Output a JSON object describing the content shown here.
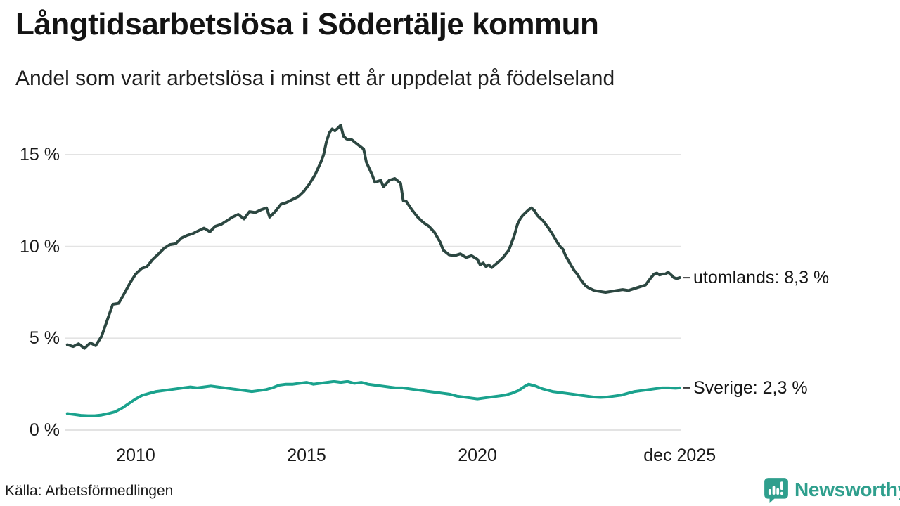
{
  "header": {
    "title": "Långtidsarbetslösa i Södertälje kommun",
    "subtitle": "Andel som varit arbetslösa i minst ett år uppdelat på födelseland"
  },
  "footer": {
    "source": "Källa: Arbetsförmedlingen",
    "logo_text": "Newsworthy"
  },
  "colors": {
    "utomlands_line": "#2c4741",
    "sverige_line": "#1aa28d",
    "grid": "#e3e3e3",
    "label_dash": "#3c3c3c",
    "brand_teal": "#2f9f8d",
    "text": "#1a1a1a"
  },
  "chart_data": {
    "type": "line",
    "title": "Långtidsarbetslösa i Södertälje kommun",
    "subtitle": "Andel som varit arbetslösa i minst ett år uppdelat på födelseland",
    "grid": true,
    "legend_position": "right-end-labels",
    "x_range": [
      2008.0,
      2025.92
    ],
    "y_range": [
      0,
      17.5
    ],
    "y_ticks": [
      {
        "label": "0 %",
        "value": 0
      },
      {
        "label": "5 %",
        "value": 5
      },
      {
        "label": "10 %",
        "value": 10
      },
      {
        "label": "15 %",
        "value": 15
      }
    ],
    "x_ticks": [
      {
        "label": "2010",
        "year": 2010
      },
      {
        "label": "2015",
        "year": 2015
      },
      {
        "label": "2020",
        "year": 2020
      },
      {
        "label": "dec 2025",
        "year": 2025.92
      }
    ],
    "series": [
      {
        "name": "utomlands",
        "end_label": "utomlands: 8,3 %",
        "end_value": 8.3,
        "color": "#2c4741",
        "points": [
          [
            2008.0,
            4.65
          ],
          [
            2008.17,
            4.55
          ],
          [
            2008.33,
            4.7
          ],
          [
            2008.5,
            4.45
          ],
          [
            2008.67,
            4.75
          ],
          [
            2008.83,
            4.6
          ],
          [
            2009.0,
            5.1
          ],
          [
            2009.17,
            6.0
          ],
          [
            2009.33,
            6.85
          ],
          [
            2009.5,
            6.9
          ],
          [
            2009.67,
            7.45
          ],
          [
            2009.83,
            8.0
          ],
          [
            2010.0,
            8.5
          ],
          [
            2010.17,
            8.8
          ],
          [
            2010.33,
            8.9
          ],
          [
            2010.5,
            9.3
          ],
          [
            2010.67,
            9.6
          ],
          [
            2010.83,
            9.9
          ],
          [
            2011.0,
            10.1
          ],
          [
            2011.17,
            10.15
          ],
          [
            2011.33,
            10.45
          ],
          [
            2011.5,
            10.6
          ],
          [
            2011.67,
            10.7
          ],
          [
            2011.83,
            10.85
          ],
          [
            2012.0,
            11.0
          ],
          [
            2012.17,
            10.8
          ],
          [
            2012.33,
            11.1
          ],
          [
            2012.5,
            11.2
          ],
          [
            2012.67,
            11.4
          ],
          [
            2012.83,
            11.6
          ],
          [
            2013.0,
            11.75
          ],
          [
            2013.17,
            11.5
          ],
          [
            2013.33,
            11.9
          ],
          [
            2013.5,
            11.85
          ],
          [
            2013.67,
            12.0
          ],
          [
            2013.83,
            12.1
          ],
          [
            2013.92,
            11.6
          ],
          [
            2014.08,
            11.9
          ],
          [
            2014.25,
            12.3
          ],
          [
            2014.42,
            12.4
          ],
          [
            2014.58,
            12.55
          ],
          [
            2014.75,
            12.7
          ],
          [
            2014.92,
            13.0
          ],
          [
            2015.08,
            13.4
          ],
          [
            2015.25,
            13.9
          ],
          [
            2015.42,
            14.6
          ],
          [
            2015.5,
            15.0
          ],
          [
            2015.58,
            15.7
          ],
          [
            2015.67,
            16.2
          ],
          [
            2015.75,
            16.4
          ],
          [
            2015.83,
            16.3
          ],
          [
            2015.92,
            16.45
          ],
          [
            2016.0,
            16.6
          ],
          [
            2016.08,
            16.0
          ],
          [
            2016.17,
            15.85
          ],
          [
            2016.33,
            15.8
          ],
          [
            2016.5,
            15.55
          ],
          [
            2016.67,
            15.3
          ],
          [
            2016.75,
            14.6
          ],
          [
            2016.92,
            13.9
          ],
          [
            2017.0,
            13.5
          ],
          [
            2017.17,
            13.6
          ],
          [
            2017.25,
            13.25
          ],
          [
            2017.42,
            13.6
          ],
          [
            2017.58,
            13.7
          ],
          [
            2017.75,
            13.45
          ],
          [
            2017.83,
            12.5
          ],
          [
            2017.92,
            12.45
          ],
          [
            2018.08,
            12.0
          ],
          [
            2018.25,
            11.6
          ],
          [
            2018.42,
            11.3
          ],
          [
            2018.58,
            11.1
          ],
          [
            2018.75,
            10.75
          ],
          [
            2018.92,
            10.2
          ],
          [
            2019.0,
            9.8
          ],
          [
            2019.17,
            9.55
          ],
          [
            2019.33,
            9.5
          ],
          [
            2019.5,
            9.6
          ],
          [
            2019.67,
            9.4
          ],
          [
            2019.83,
            9.5
          ],
          [
            2020.0,
            9.3
          ],
          [
            2020.08,
            9.0
          ],
          [
            2020.17,
            9.1
          ],
          [
            2020.25,
            8.9
          ],
          [
            2020.33,
            9.0
          ],
          [
            2020.42,
            8.85
          ],
          [
            2020.58,
            9.1
          ],
          [
            2020.75,
            9.4
          ],
          [
            2020.92,
            9.8
          ],
          [
            2021.0,
            10.2
          ],
          [
            2021.08,
            10.6
          ],
          [
            2021.17,
            11.2
          ],
          [
            2021.25,
            11.5
          ],
          [
            2021.33,
            11.7
          ],
          [
            2021.5,
            12.0
          ],
          [
            2021.58,
            12.1
          ],
          [
            2021.67,
            11.95
          ],
          [
            2021.75,
            11.7
          ],
          [
            2021.83,
            11.55
          ],
          [
            2021.92,
            11.4
          ],
          [
            2022.0,
            11.2
          ],
          [
            2022.08,
            11.0
          ],
          [
            2022.17,
            10.75
          ],
          [
            2022.25,
            10.5
          ],
          [
            2022.33,
            10.25
          ],
          [
            2022.42,
            10.0
          ],
          [
            2022.5,
            9.85
          ],
          [
            2022.58,
            9.5
          ],
          [
            2022.67,
            9.2
          ],
          [
            2022.75,
            8.95
          ],
          [
            2022.83,
            8.7
          ],
          [
            2022.92,
            8.5
          ],
          [
            2023.0,
            8.25
          ],
          [
            2023.08,
            8.05
          ],
          [
            2023.17,
            7.85
          ],
          [
            2023.25,
            7.75
          ],
          [
            2023.42,
            7.6
          ],
          [
            2023.58,
            7.55
          ],
          [
            2023.75,
            7.5
          ],
          [
            2023.92,
            7.55
          ],
          [
            2024.08,
            7.6
          ],
          [
            2024.25,
            7.65
          ],
          [
            2024.42,
            7.6
          ],
          [
            2024.58,
            7.7
          ],
          [
            2024.75,
            7.8
          ],
          [
            2024.92,
            7.9
          ],
          [
            2025.0,
            8.1
          ],
          [
            2025.08,
            8.3
          ],
          [
            2025.17,
            8.5
          ],
          [
            2025.25,
            8.55
          ],
          [
            2025.33,
            8.45
          ],
          [
            2025.42,
            8.5
          ],
          [
            2025.5,
            8.5
          ],
          [
            2025.58,
            8.6
          ],
          [
            2025.67,
            8.45
          ],
          [
            2025.75,
            8.3
          ],
          [
            2025.83,
            8.25
          ],
          [
            2025.92,
            8.3
          ]
        ]
      },
      {
        "name": "Sverige",
        "end_label": "Sverige: 2,3 %",
        "end_value": 2.3,
        "color": "#1aa28d",
        "points": [
          [
            2008.0,
            0.9
          ],
          [
            2008.2,
            0.85
          ],
          [
            2008.4,
            0.8
          ],
          [
            2008.6,
            0.78
          ],
          [
            2008.8,
            0.78
          ],
          [
            2009.0,
            0.82
          ],
          [
            2009.2,
            0.9
          ],
          [
            2009.4,
            1.0
          ],
          [
            2009.6,
            1.2
          ],
          [
            2009.8,
            1.45
          ],
          [
            2010.0,
            1.7
          ],
          [
            2010.2,
            1.9
          ],
          [
            2010.4,
            2.0
          ],
          [
            2010.6,
            2.1
          ],
          [
            2010.8,
            2.15
          ],
          [
            2011.0,
            2.2
          ],
          [
            2011.2,
            2.25
          ],
          [
            2011.4,
            2.3
          ],
          [
            2011.6,
            2.35
          ],
          [
            2011.8,
            2.3
          ],
          [
            2012.0,
            2.35
          ],
          [
            2012.2,
            2.4
          ],
          [
            2012.4,
            2.35
          ],
          [
            2012.6,
            2.3
          ],
          [
            2012.8,
            2.25
          ],
          [
            2013.0,
            2.2
          ],
          [
            2013.2,
            2.15
          ],
          [
            2013.4,
            2.1
          ],
          [
            2013.6,
            2.15
          ],
          [
            2013.8,
            2.2
          ],
          [
            2014.0,
            2.3
          ],
          [
            2014.2,
            2.45
          ],
          [
            2014.4,
            2.5
          ],
          [
            2014.6,
            2.5
          ],
          [
            2014.8,
            2.55
          ],
          [
            2015.0,
            2.6
          ],
          [
            2015.2,
            2.5
          ],
          [
            2015.4,
            2.55
          ],
          [
            2015.6,
            2.6
          ],
          [
            2015.8,
            2.65
          ],
          [
            2016.0,
            2.6
          ],
          [
            2016.2,
            2.65
          ],
          [
            2016.4,
            2.55
          ],
          [
            2016.6,
            2.6
          ],
          [
            2016.8,
            2.5
          ],
          [
            2017.0,
            2.45
          ],
          [
            2017.2,
            2.4
          ],
          [
            2017.4,
            2.35
          ],
          [
            2017.6,
            2.3
          ],
          [
            2017.8,
            2.3
          ],
          [
            2018.0,
            2.25
          ],
          [
            2018.2,
            2.2
          ],
          [
            2018.4,
            2.15
          ],
          [
            2018.6,
            2.1
          ],
          [
            2018.8,
            2.05
          ],
          [
            2019.0,
            2.0
          ],
          [
            2019.2,
            1.95
          ],
          [
            2019.4,
            1.85
          ],
          [
            2019.6,
            1.8
          ],
          [
            2019.8,
            1.75
          ],
          [
            2020.0,
            1.7
          ],
          [
            2020.2,
            1.75
          ],
          [
            2020.4,
            1.8
          ],
          [
            2020.6,
            1.85
          ],
          [
            2020.8,
            1.9
          ],
          [
            2021.0,
            2.0
          ],
          [
            2021.2,
            2.15
          ],
          [
            2021.4,
            2.4
          ],
          [
            2021.5,
            2.5
          ],
          [
            2021.7,
            2.4
          ],
          [
            2021.9,
            2.25
          ],
          [
            2022.0,
            2.2
          ],
          [
            2022.2,
            2.1
          ],
          [
            2022.4,
            2.05
          ],
          [
            2022.6,
            2.0
          ],
          [
            2022.8,
            1.95
          ],
          [
            2023.0,
            1.9
          ],
          [
            2023.2,
            1.85
          ],
          [
            2023.4,
            1.8
          ],
          [
            2023.6,
            1.78
          ],
          [
            2023.8,
            1.8
          ],
          [
            2024.0,
            1.85
          ],
          [
            2024.2,
            1.9
          ],
          [
            2024.4,
            2.0
          ],
          [
            2024.6,
            2.1
          ],
          [
            2024.8,
            2.15
          ],
          [
            2025.0,
            2.2
          ],
          [
            2025.2,
            2.25
          ],
          [
            2025.4,
            2.3
          ],
          [
            2025.6,
            2.3
          ],
          [
            2025.8,
            2.28
          ],
          [
            2025.92,
            2.3
          ]
        ]
      }
    ]
  }
}
